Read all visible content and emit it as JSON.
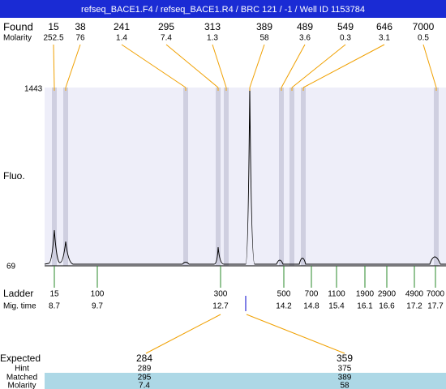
{
  "header": {
    "title": "refseq_BACE1.F4 / refseq_BACE1.R4 / BRC 121 / -1 / Well ID 1153784"
  },
  "found": {
    "label": "Found",
    "molarity_label": "Molarity",
    "peaks": [
      {
        "size": "15",
        "molarity": "252.5"
      },
      {
        "size": "38",
        "molarity": "76"
      },
      {
        "size": "241",
        "molarity": "1.4"
      },
      {
        "size": "295",
        "molarity": "7.4"
      },
      {
        "size": "313",
        "molarity": "1.3"
      },
      {
        "size": "389",
        "molarity": "58"
      },
      {
        "size": "489",
        "molarity": "3.6"
      },
      {
        "size": "549",
        "molarity": "0.3"
      },
      {
        "size": "646",
        "molarity": "3.1"
      },
      {
        "size": "7000",
        "molarity": "0.5"
      }
    ]
  },
  "axis": {
    "label": "Fluo.",
    "max": "1443",
    "min": "69"
  },
  "ladder": {
    "label": "Ladder",
    "time_label": "Mig. time",
    "items": [
      {
        "size": "15",
        "time": "8.7"
      },
      {
        "size": "100",
        "time": "9.7"
      },
      {
        "size": "300",
        "time": "12.7"
      },
      {
        "size": "500",
        "time": "14.2"
      },
      {
        "size": "700",
        "time": "14.8"
      },
      {
        "size": "1100",
        "time": "15.4"
      },
      {
        "size": "1900",
        "time": "16.1"
      },
      {
        "size": "2900",
        "time": "16.6"
      },
      {
        "size": "4900",
        "time": "17.2"
      },
      {
        "size": "7000",
        "time": "17.7"
      }
    ]
  },
  "expected": {
    "labels": [
      "Expected",
      "Hint",
      "Matched",
      "Molarity"
    ],
    "columns": [
      {
        "expected": "284",
        "hint": "289",
        "matched": "295",
        "molarity": "7.4"
      },
      {
        "expected": "359",
        "hint": "375",
        "matched": "389",
        "molarity": "58"
      }
    ]
  }
}
